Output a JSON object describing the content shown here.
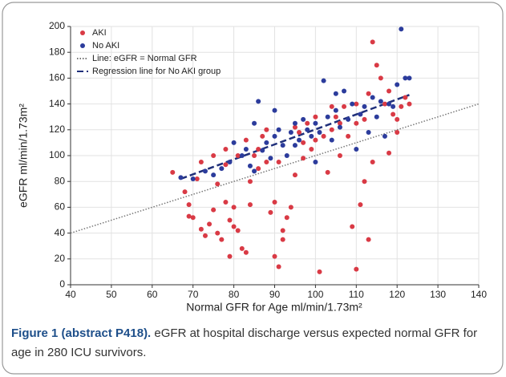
{
  "chart_data": {
    "type": "scatter",
    "xlabel": "Normal GFR for Age ml/min/1.73m²",
    "ylabel": "eGFR ml/min/1.73m²",
    "xlim": [
      40,
      140
    ],
    "ylim": [
      0,
      200
    ],
    "xticks": [
      40,
      50,
      60,
      70,
      80,
      90,
      100,
      110,
      120,
      130,
      140
    ],
    "yticks": [
      0,
      20,
      40,
      60,
      80,
      100,
      120,
      140,
      160,
      180,
      200
    ],
    "grid": true,
    "legend": "upper left",
    "series": [
      {
        "name": "AKI",
        "color": "#d93a45",
        "x": [
          65,
          68,
          69,
          69,
          70,
          71,
          72,
          73,
          74,
          75,
          76,
          77,
          78,
          78,
          79,
          79,
          80,
          80,
          81,
          81,
          82,
          83,
          84,
          84,
          85,
          86,
          87,
          88,
          89,
          90,
          90,
          91,
          91,
          92,
          92,
          93,
          94,
          95,
          96,
          97,
          98,
          99,
          100,
          101,
          102,
          103,
          104,
          105,
          106,
          107,
          108,
          109,
          110,
          110,
          111,
          112,
          113,
          113,
          114,
          115,
          116,
          117,
          118,
          119,
          120,
          121,
          122,
          123,
          72,
          75,
          76,
          78,
          83,
          86,
          88,
          95,
          97,
          100,
          104,
          106,
          110,
          114,
          118,
          120,
          112
        ],
        "y": [
          87,
          72,
          62,
          53,
          52,
          82,
          43,
          38,
          47,
          58,
          40,
          35,
          93,
          64,
          22,
          50,
          45,
          60,
          100,
          42,
          28,
          25,
          62,
          80,
          100,
          105,
          115,
          95,
          56,
          22,
          64,
          14,
          95,
          35,
          42,
          52,
          60,
          85,
          118,
          110,
          125,
          105,
          130,
          10,
          115,
          87,
          120,
          130,
          100,
          138,
          115,
          45,
          12,
          125,
          62,
          128,
          148,
          35,
          188,
          170,
          160,
          140,
          150,
          132,
          128,
          138,
          145,
          140,
          95,
          100,
          78,
          105,
          112,
          90,
          120,
          122,
          98,
          112,
          138,
          125,
          140,
          95,
          102,
          118,
          80
        ]
      },
      {
        "name": "No AKI",
        "color": "#2c3c9c",
        "x": [
          67,
          70,
          73,
          75,
          77,
          79,
          80,
          82,
          83,
          84,
          85,
          86,
          87,
          88,
          89,
          90,
          91,
          92,
          93,
          94,
          95,
          96,
          97,
          98,
          99,
          100,
          101,
          102,
          103,
          104,
          105,
          106,
          107,
          108,
          109,
          110,
          111,
          112,
          113,
          114,
          115,
          116,
          117,
          118,
          119,
          120,
          121,
          122,
          123,
          85,
          90,
          95,
          100,
          105
        ],
        "y": [
          83,
          82,
          88,
          85,
          90,
          95,
          110,
          100,
          105,
          92,
          88,
          142,
          104,
          110,
          98,
          115,
          120,
          108,
          100,
          118,
          125,
          112,
          128,
          120,
          115,
          125,
          118,
          158,
          130,
          112,
          135,
          122,
          150,
          128,
          140,
          105,
          132,
          138,
          118,
          145,
          130,
          142,
          115,
          140,
          138,
          155,
          198,
          160,
          160,
          125,
          135,
          108,
          95,
          148
        ]
      }
    ],
    "lines": [
      {
        "name": "Line: eGFR = Normal GFR",
        "color": "#777777",
        "style": "dotted",
        "x": [
          40,
          140
        ],
        "y": [
          40,
          140
        ]
      },
      {
        "name": "Regression line for No AKI group",
        "color": "#1f2f7a",
        "style": "dashed",
        "x": [
          67,
          123
        ],
        "y": [
          82,
          147
        ]
      }
    ]
  },
  "caption": {
    "label": "Figure 1 (abstract P418).",
    "text": "eGFR at hospital discharge versus expected normal GFR for age in 280 ICU survivors."
  }
}
